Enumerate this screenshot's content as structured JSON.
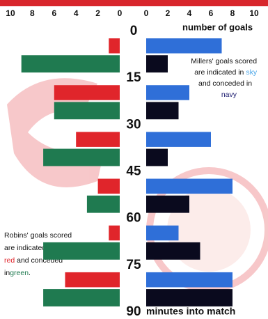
{
  "chart_data": {
    "type": "butterfly",
    "bins": [
      0,
      15,
      30,
      45,
      60,
      75,
      90
    ],
    "left": {
      "xlim": [
        10,
        0
      ],
      "xticks": [
        10,
        8,
        6,
        4,
        2,
        0
      ],
      "series": [
        {
          "color": "#e0252b",
          "values": [
            1,
            6,
            4,
            2,
            1,
            5
          ]
        },
        {
          "color": "#1f7a50",
          "values": [
            9,
            6,
            7,
            3,
            7,
            7
          ]
        }
      ]
    },
    "right": {
      "xlim": [
        0,
        10
      ],
      "xticks": [
        0,
        2,
        4,
        6,
        8,
        10
      ],
      "series": [
        {
          "color": "#2f6fd8",
          "values": [
            7,
            4,
            6,
            8,
            3,
            8
          ]
        },
        {
          "color": "#0a0a1e",
          "values": [
            2,
            3,
            2,
            4,
            5,
            8
          ]
        }
      ]
    },
    "right_axis_label": "number of goals",
    "bottom_label": "minutes into match",
    "right_note": [
      "Millers' goals scored",
      "are indicated in ",
      "sky",
      "and conceded in",
      "navy"
    ],
    "left_note": [
      "Robins' goals scored",
      "are indicated in",
      "red",
      " and conceded",
      "in",
      "green",
      "."
    ]
  }
}
